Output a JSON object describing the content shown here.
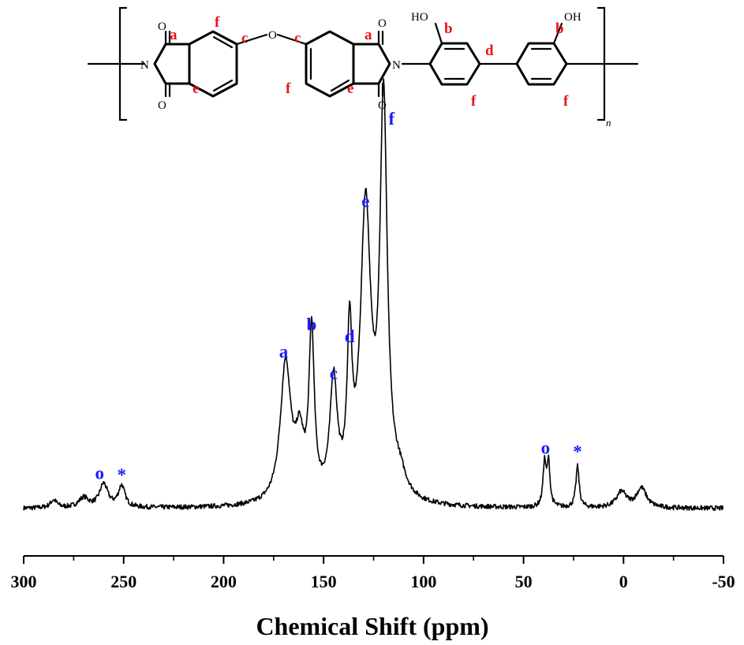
{
  "chart_data": {
    "type": "line",
    "title": "",
    "xlabel": "Chemical Shift (ppm)",
    "ylabel": "",
    "xlim": [
      300,
      -50
    ],
    "x_reversed": true,
    "x_ticks": [
      300,
      250,
      200,
      150,
      100,
      50,
      0,
      -50
    ],
    "x_tick_labels": [
      "300",
      "250",
      "200",
      "150",
      "100",
      "50",
      "0",
      "-50"
    ],
    "grid": false,
    "series": [
      {
        "peaks": [
          {
            "label": "a",
            "center": 169,
            "height": 0.355,
            "width": 3.2
          },
          {
            "label": "",
            "center": 162,
            "height": 0.14,
            "width": 2.5
          },
          {
            "label": "b",
            "center": 156,
            "height": 0.42,
            "width": 1.6
          },
          {
            "label": "c",
            "center": 145,
            "height": 0.295,
            "width": 2.2
          },
          {
            "label": "d",
            "center": 137,
            "height": 0.39,
            "width": 1.4
          },
          {
            "label": "e",
            "center": 129,
            "height": 0.735,
            "width": 3.1
          },
          {
            "label": "f",
            "center": 120,
            "height": 1.0,
            "width": 2.2
          },
          {
            "label": "",
            "center": 112,
            "height": 0.05,
            "width": 4.0
          },
          {
            "label": "o",
            "center": 260,
            "height": 0.06,
            "width": 2.5
          },
          {
            "label": "*",
            "center": 251,
            "height": 0.055,
            "width": 2.0
          },
          {
            "label": "o",
            "center": 39.5,
            "height": 0.11,
            "width": 0.9
          },
          {
            "label": "o",
            "center": 37.5,
            "height": 0.11,
            "width": 0.9
          },
          {
            "label": "*",
            "center": 23,
            "height": 0.105,
            "width": 1.0
          },
          {
            "label": "",
            "center": 1,
            "height": 0.04,
            "width": 3.0
          },
          {
            "label": "",
            "center": -9,
            "height": 0.05,
            "width": 3.0
          },
          {
            "label": "",
            "center": 285,
            "height": 0.02,
            "width": 2.0
          },
          {
            "label": "",
            "center": 270,
            "height": 0.025,
            "width": 3.0
          }
        ]
      }
    ],
    "peak_annotations": [
      {
        "text": "a",
        "x": 170,
        "y": 0.385
      },
      {
        "text": "b",
        "x": 156,
        "y": 0.455
      },
      {
        "text": "c",
        "x": 145,
        "y": 0.33
      },
      {
        "text": "d",
        "x": 137,
        "y": 0.425
      },
      {
        "text": "e",
        "x": 129,
        "y": 0.77
      },
      {
        "text": "f",
        "x": 116,
        "y": 0.98
      },
      {
        "text": "o",
        "x": 262,
        "y": 0.075
      },
      {
        "text": "*",
        "x": 251,
        "y": 0.07
      },
      {
        "text": "o",
        "x": 39,
        "y": 0.14
      },
      {
        "text": "*",
        "x": 23,
        "y": 0.13
      }
    ]
  },
  "structure": {
    "hetero_atoms": {
      "oxygen": "O",
      "nitrogen": "N",
      "hydroxyl": "HO",
      "hydroxyl_right": "OH",
      "repeat_subscript": "n"
    },
    "atom_labels": {
      "a1": "a",
      "f1": "f",
      "c1": "c",
      "e1": "e",
      "c2": "c",
      "f2": "f",
      "e2": "e",
      "a2": "a",
      "b1": "b",
      "d1": "d",
      "f3": "f",
      "b2": "b",
      "f4": "f"
    },
    "colors": {
      "carbon_label": "#e8141c",
      "peak_label": "#1a1aff"
    }
  }
}
